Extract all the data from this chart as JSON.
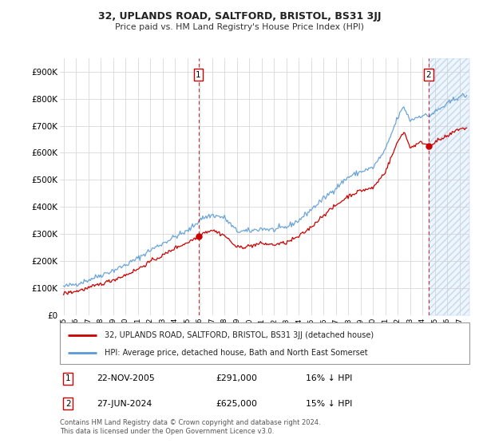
{
  "title": "32, UPLANDS ROAD, SALTFORD, BRISTOL, BS31 3JJ",
  "subtitle": "Price paid vs. HM Land Registry's House Price Index (HPI)",
  "ylabel_ticks": [
    "£0",
    "£100K",
    "£200K",
    "£300K",
    "£400K",
    "£500K",
    "£600K",
    "£700K",
    "£800K",
    "£900K"
  ],
  "ylim": [
    0,
    950000
  ],
  "xlim_start": 1994.7,
  "xlim_end": 2027.8,
  "xtick_years": [
    1995,
    1996,
    1997,
    1998,
    1999,
    2000,
    2001,
    2002,
    2003,
    2004,
    2005,
    2006,
    2007,
    2008,
    2009,
    2010,
    2011,
    2012,
    2013,
    2014,
    2015,
    2016,
    2017,
    2018,
    2019,
    2020,
    2021,
    2022,
    2023,
    2024,
    2025,
    2026,
    2027
  ],
  "xtick_labels": [
    "95",
    "96",
    "97",
    "98",
    "99",
    "00",
    "01",
    "02",
    "03",
    "04",
    "05",
    "06",
    "07",
    "08",
    "09",
    "10",
    "11",
    "12",
    "13",
    "14",
    "15",
    "16",
    "17",
    "18",
    "19",
    "20",
    "21",
    "22",
    "23",
    "24",
    "25",
    "26",
    "27"
  ],
  "hpi_color": "#5b9bd5",
  "price_color": "#cc0000",
  "hpi_anchors_x": [
    1995,
    1996,
    1997,
    1998,
    1999,
    2000,
    2001,
    2002,
    2003,
    2004,
    2005,
    2005.9,
    2006,
    2007,
    2008,
    2009,
    2010,
    2011,
    2012,
    2013,
    2014,
    2015,
    2016,
    2017,
    2018,
    2019,
    2020,
    2021,
    2022,
    2022.5,
    2023,
    2024,
    2024.5,
    2025,
    2026,
    2027
  ],
  "hpi_anchors_y": [
    105000,
    115000,
    130000,
    148000,
    165000,
    185000,
    210000,
    240000,
    265000,
    290000,
    310000,
    346000,
    355000,
    370000,
    360000,
    310000,
    310000,
    320000,
    315000,
    325000,
    350000,
    390000,
    430000,
    470000,
    510000,
    530000,
    545000,
    610000,
    730000,
    770000,
    720000,
    740000,
    735000,
    750000,
    780000,
    810000
  ],
  "price_anchors_x": [
    1995,
    1996,
    1997,
    1998,
    1999,
    2000,
    2001,
    2002,
    2003,
    2004,
    2005,
    2005.9,
    2006,
    2007,
    2008,
    2009,
    2010,
    2011,
    2012,
    2013,
    2014,
    2015,
    2016,
    2017,
    2018,
    2019,
    2020,
    2021,
    2022,
    2022.5,
    2023,
    2024,
    2024.5,
    2025,
    2026,
    2027
  ],
  "price_anchors_y": [
    80000,
    88000,
    100000,
    115000,
    130000,
    148000,
    170000,
    198000,
    220000,
    248000,
    268000,
    291000,
    300000,
    315000,
    295000,
    250000,
    255000,
    265000,
    260000,
    268000,
    290000,
    325000,
    370000,
    405000,
    440000,
    460000,
    470000,
    530000,
    640000,
    680000,
    620000,
    640000,
    625000,
    640000,
    660000,
    690000
  ],
  "sale1_date": 2005.9,
  "sale1_price": 291000,
  "sale1_hpi": 346000,
  "sale1_label": "1",
  "sale2_date": 2024.5,
  "sale2_price": 625000,
  "sale2_hpi": 735000,
  "sale2_label": "2",
  "legend_line1": "32, UPLANDS ROAD, SALTFORD, BRISTOL, BS31 3JJ (detached house)",
  "legend_line2": "HPI: Average price, detached house, Bath and North East Somerset",
  "annotation1_date": "22-NOV-2005",
  "annotation1_price": "£291,000",
  "annotation1_pct": "16% ↓ HPI",
  "annotation2_date": "27-JUN-2024",
  "annotation2_price": "£625,000",
  "annotation2_pct": "15% ↓ HPI",
  "footer": "Contains HM Land Registry data © Crown copyright and database right 2024.\nThis data is licensed under the Open Government Licence v3.0.",
  "bg_color": "#ffffff",
  "grid_color": "#d0d0d0",
  "shade_color": "#ddeeff",
  "vline1_x": 2005.9,
  "vline2_x": 2024.5
}
